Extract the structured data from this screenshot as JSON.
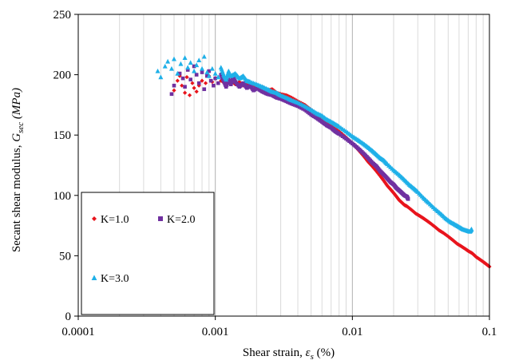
{
  "chart_data": {
    "type": "scatter",
    "xlabel": {
      "prefix": "Shear strain, ",
      "symbol": "ε",
      "subscript": "s",
      "suffix": " (%)"
    },
    "ylabel": {
      "prefix": "Secant shear modulus, ",
      "symbol": "G",
      "subscript": "sec",
      "suffix": " (MPa)"
    },
    "x_scale": "log",
    "xlim": [
      0.0001,
      0.1
    ],
    "ylim": [
      0,
      250
    ],
    "x_ticks": [
      {
        "value": 0.0001,
        "label": "0.0001"
      },
      {
        "value": 0.001,
        "label": "0.001"
      },
      {
        "value": 0.01,
        "label": "0.01"
      },
      {
        "value": 0.1,
        "label": "0.1"
      }
    ],
    "y_ticks": [
      {
        "value": 0,
        "label": "0"
      },
      {
        "value": 50,
        "label": "50"
      },
      {
        "value": 100,
        "label": "100"
      },
      {
        "value": 150,
        "label": "150"
      },
      {
        "value": 200,
        "label": "200"
      },
      {
        "value": 250,
        "label": "250"
      }
    ],
    "grid": {
      "x_major": true,
      "x_minor": true,
      "y": false
    },
    "legend_placement": "lower-left",
    "series": [
      {
        "name": "K=1.0",
        "marker": "diamond",
        "color": "#e8141c",
        "points": [
          [
            0.0005,
            187
          ],
          [
            0.00053,
            195
          ],
          [
            0.00055,
            199
          ],
          [
            0.00057,
            191
          ],
          [
            0.0006,
            185
          ],
          [
            0.00062,
            198
          ],
          [
            0.00065,
            183
          ],
          [
            0.00068,
            193
          ],
          [
            0.0007,
            189
          ],
          [
            0.00073,
            186
          ],
          [
            0.00076,
            191
          ],
          [
            0.0008,
            195
          ],
          [
            0.00085,
            193
          ],
          [
            0.0009,
            199
          ],
          [
            0.00095,
            194
          ],
          [
            0.001,
            197
          ],
          [
            0.0011,
            195
          ],
          [
            0.0012,
            193
          ],
          [
            0.0013,
            195
          ],
          [
            0.0014,
            192
          ],
          [
            0.0015,
            194
          ],
          [
            0.0016,
            191
          ],
          [
            0.0017,
            193
          ],
          [
            0.0018,
            190
          ],
          [
            0.0019,
            192
          ],
          [
            0.002,
            189
          ],
          [
            0.0022,
            190
          ],
          [
            0.0024,
            187
          ],
          [
            0.0026,
            188
          ],
          [
            0.0028,
            185
          ],
          [
            0.003,
            184
          ],
          [
            0.0033,
            183
          ],
          [
            0.0036,
            181
          ],
          [
            0.004,
            178
          ],
          [
            0.0045,
            175
          ],
          [
            0.005,
            171
          ],
          [
            0.0055,
            167
          ],
          [
            0.006,
            164
          ],
          [
            0.0065,
            161
          ],
          [
            0.007,
            158
          ],
          [
            0.0075,
            155
          ],
          [
            0.008,
            153
          ],
          [
            0.009,
            148
          ],
          [
            0.01,
            143
          ],
          [
            0.011,
            138
          ],
          [
            0.012,
            133
          ],
          [
            0.013,
            128
          ],
          [
            0.014,
            124
          ],
          [
            0.015,
            120
          ],
          [
            0.016,
            116
          ],
          [
            0.017,
            112
          ],
          [
            0.018,
            108
          ],
          [
            0.019,
            105
          ],
          [
            0.02,
            102
          ],
          [
            0.021,
            99
          ],
          [
            0.022,
            96
          ],
          [
            0.023,
            94
          ],
          [
            0.024,
            92
          ],
          [
            0.025,
            91
          ],
          [
            0.027,
            88
          ],
          [
            0.029,
            85
          ],
          [
            0.031,
            83
          ],
          [
            0.033,
            81
          ],
          [
            0.035,
            79
          ],
          [
            0.037,
            77
          ],
          [
            0.04,
            74
          ],
          [
            0.043,
            71
          ],
          [
            0.046,
            69
          ],
          [
            0.05,
            66
          ],
          [
            0.054,
            63
          ],
          [
            0.058,
            60
          ],
          [
            0.062,
            58
          ],
          [
            0.066,
            56
          ],
          [
            0.07,
            54
          ],
          [
            0.075,
            52
          ],
          [
            0.08,
            49
          ],
          [
            0.085,
            47
          ],
          [
            0.09,
            45
          ],
          [
            0.095,
            43
          ],
          [
            0.1,
            41
          ]
        ]
      },
      {
        "name": "K=2.0",
        "marker": "square",
        "color": "#7030a0",
        "points": [
          [
            0.00048,
            184
          ],
          [
            0.0005,
            191
          ],
          [
            0.00055,
            201
          ],
          [
            0.00058,
            197
          ],
          [
            0.0006,
            190
          ],
          [
            0.00063,
            204
          ],
          [
            0.00066,
            196
          ],
          [
            0.0007,
            207
          ],
          [
            0.00073,
            200
          ],
          [
            0.00076,
            193
          ],
          [
            0.0008,
            202
          ],
          [
            0.00083,
            188
          ],
          [
            0.00087,
            199
          ],
          [
            0.0009,
            203
          ],
          [
            0.00093,
            195
          ],
          [
            0.00097,
            191
          ],
          [
            0.001,
            197
          ],
          [
            0.00105,
            193
          ],
          [
            0.0011,
            200
          ],
          [
            0.00115,
            195
          ],
          [
            0.0012,
            190
          ],
          [
            0.00125,
            196
          ],
          [
            0.0013,
            192
          ],
          [
            0.00135,
            198
          ],
          [
            0.0014,
            194
          ],
          [
            0.0015,
            190
          ],
          [
            0.0016,
            193
          ],
          [
            0.0017,
            189
          ],
          [
            0.0018,
            191
          ],
          [
            0.0019,
            187
          ],
          [
            0.002,
            189
          ],
          [
            0.0022,
            186
          ],
          [
            0.0024,
            184
          ],
          [
            0.0026,
            183
          ],
          [
            0.0028,
            181
          ],
          [
            0.003,
            180
          ],
          [
            0.0033,
            178
          ],
          [
            0.0036,
            176
          ],
          [
            0.004,
            174
          ],
          [
            0.0045,
            171
          ],
          [
            0.005,
            167
          ],
          [
            0.0055,
            164
          ],
          [
            0.006,
            161
          ],
          [
            0.0065,
            158
          ],
          [
            0.007,
            156
          ],
          [
            0.0075,
            153
          ],
          [
            0.008,
            151
          ],
          [
            0.009,
            147
          ],
          [
            0.01,
            143
          ],
          [
            0.011,
            139
          ],
          [
            0.012,
            135
          ],
          [
            0.013,
            131
          ],
          [
            0.014,
            127
          ],
          [
            0.015,
            124
          ],
          [
            0.016,
            120
          ],
          [
            0.017,
            117
          ],
          [
            0.018,
            114
          ],
          [
            0.019,
            111
          ],
          [
            0.02,
            109
          ],
          [
            0.021,
            106
          ],
          [
            0.022,
            104
          ],
          [
            0.023,
            102
          ],
          [
            0.024,
            100
          ],
          [
            0.025,
            99
          ],
          [
            0.0255,
            97
          ]
        ]
      },
      {
        "name": "K=3.0",
        "marker": "triangle",
        "color": "#1fb0e8",
        "points": [
          [
            0.00038,
            203
          ],
          [
            0.0004,
            198
          ],
          [
            0.00043,
            207
          ],
          [
            0.00045,
            211
          ],
          [
            0.00048,
            205
          ],
          [
            0.0005,
            213
          ],
          [
            0.00053,
            201
          ],
          [
            0.00056,
            209
          ],
          [
            0.0006,
            214
          ],
          [
            0.00063,
            206
          ],
          [
            0.00066,
            210
          ],
          [
            0.0007,
            203
          ],
          [
            0.00073,
            208
          ],
          [
            0.00076,
            212
          ],
          [
            0.0008,
            205
          ],
          [
            0.00083,
            215
          ],
          [
            0.00087,
            202
          ],
          [
            0.0009,
            199
          ],
          [
            0.00095,
            205
          ],
          [
            0.001,
            201
          ],
          [
            0.00105,
            198
          ],
          [
            0.0011,
            206
          ],
          [
            0.00115,
            200
          ],
          [
            0.0012,
            196
          ],
          [
            0.00125,
            203
          ],
          [
            0.0013,
            199
          ],
          [
            0.0014,
            201
          ],
          [
            0.0015,
            197
          ],
          [
            0.0016,
            199
          ],
          [
            0.0017,
            195
          ],
          [
            0.0018,
            194
          ],
          [
            0.002,
            192
          ],
          [
            0.0022,
            190
          ],
          [
            0.0024,
            188
          ],
          [
            0.0026,
            186
          ],
          [
            0.0028,
            185
          ],
          [
            0.003,
            183
          ],
          [
            0.0033,
            181
          ],
          [
            0.0036,
            179
          ],
          [
            0.004,
            177
          ],
          [
            0.0045,
            174
          ],
          [
            0.005,
            171
          ],
          [
            0.0055,
            168
          ],
          [
            0.006,
            166
          ],
          [
            0.0065,
            163
          ],
          [
            0.007,
            161
          ],
          [
            0.0075,
            159
          ],
          [
            0.008,
            157
          ],
          [
            0.009,
            153
          ],
          [
            0.01,
            149
          ],
          [
            0.011,
            146
          ],
          [
            0.012,
            143
          ],
          [
            0.013,
            140
          ],
          [
            0.014,
            137
          ],
          [
            0.015,
            134
          ],
          [
            0.016,
            131
          ],
          [
            0.017,
            129
          ],
          [
            0.018,
            126
          ],
          [
            0.02,
            121
          ],
          [
            0.022,
            117
          ],
          [
            0.024,
            113
          ],
          [
            0.026,
            109
          ],
          [
            0.028,
            106
          ],
          [
            0.03,
            103
          ],
          [
            0.033,
            98
          ],
          [
            0.036,
            94
          ],
          [
            0.04,
            89
          ],
          [
            0.044,
            85
          ],
          [
            0.048,
            81
          ],
          [
            0.052,
            78
          ],
          [
            0.056,
            76
          ],
          [
            0.06,
            74
          ],
          [
            0.064,
            72
          ],
          [
            0.068,
            71
          ],
          [
            0.072,
            70
          ],
          [
            0.074,
            72
          ]
        ]
      }
    ]
  }
}
